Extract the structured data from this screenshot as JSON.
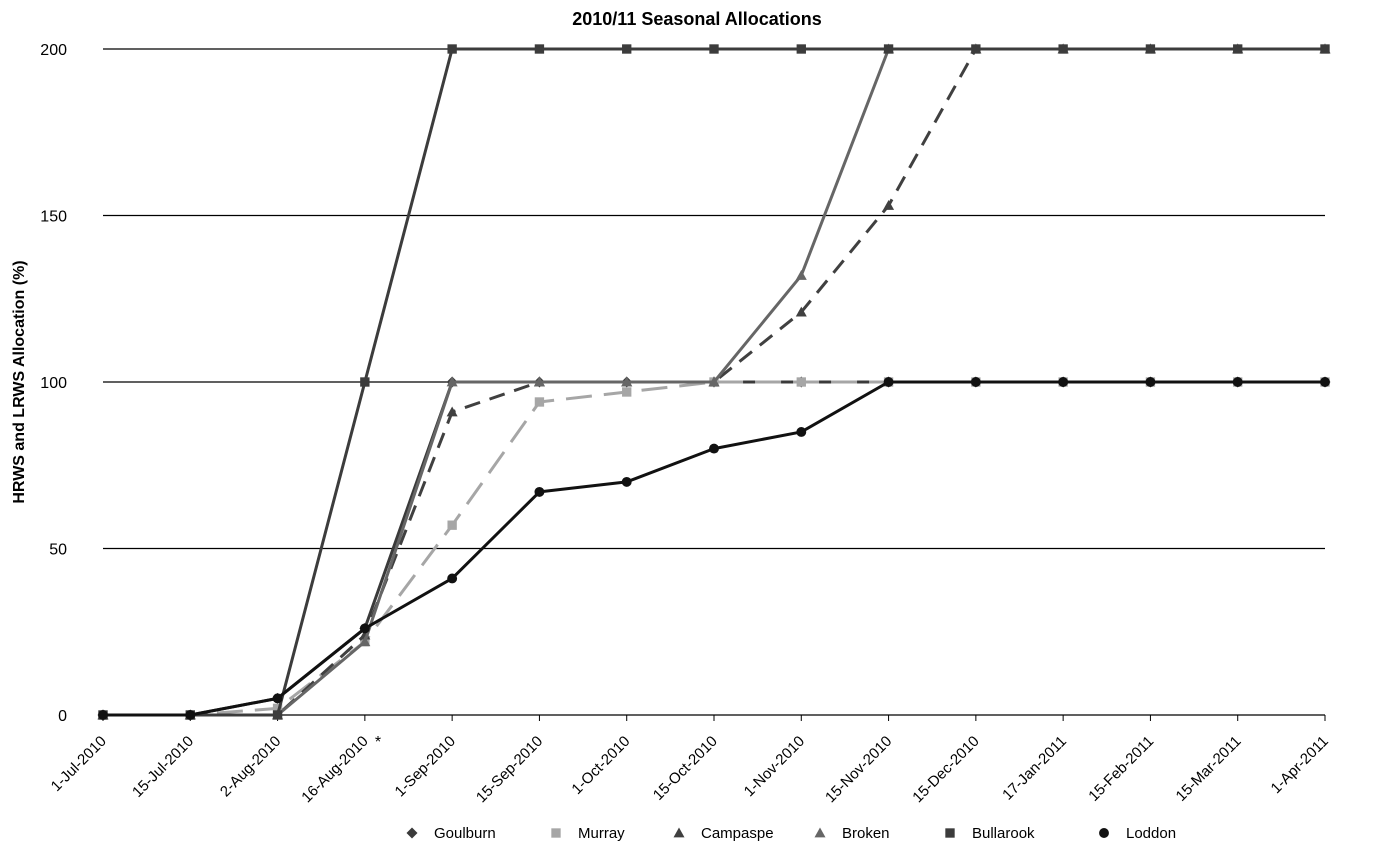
{
  "chart_data": {
    "type": "line",
    "title": "2010/11 Seasonal Allocations",
    "xlabel": "",
    "ylabel": "HRWS and LRWS Allocation (%)",
    "ylim": [
      0,
      200
    ],
    "yticks": [
      0,
      50,
      100,
      150,
      200
    ],
    "grid": "horizontal",
    "legend_position": "bottom",
    "categories": [
      "1-Jul-2010",
      "15-Jul-2010",
      "2-Aug-2010",
      "16-Aug-2010",
      "1-Sep-2010",
      "15-Sep-2010",
      "1-Oct-2010",
      "15-Oct-2010",
      "1-Nov-2010",
      "15-Nov-2010",
      "15-Dec-2010",
      "17-Jan-2011",
      "15-Feb-2011",
      "15-Mar-2011",
      "1-Apr-2011"
    ],
    "annotations": [
      {
        "category": "16-Aug-2010",
        "text": "*"
      }
    ],
    "series": [
      {
        "name": "Goulburn",
        "marker": "diamond",
        "color": "#3a3a3a",
        "dash": "solid",
        "values": [
          0,
          0,
          5,
          26,
          100,
          100,
          100,
          100,
          100,
          100,
          100,
          100,
          100,
          100,
          100
        ]
      },
      {
        "name": "Murray",
        "marker": "square",
        "color": "#a6a6a6",
        "dash": "long-dash",
        "values": [
          0,
          0,
          2,
          22,
          57,
          94,
          97,
          100,
          100,
          100,
          100,
          100,
          100,
          100,
          100
        ]
      },
      {
        "name": "Campaspe",
        "marker": "triangle",
        "color": "#404040",
        "dash": "dash",
        "values": [
          0,
          0,
          0,
          24,
          91,
          100,
          100,
          100,
          121,
          153,
          200,
          200,
          200,
          200,
          200
        ]
      },
      {
        "name": "Broken",
        "marker": "triangle",
        "color": "#666666",
        "dash": "solid",
        "values": [
          0,
          0,
          0,
          22,
          100,
          100,
          100,
          100,
          132,
          200,
          200,
          200,
          200,
          200,
          200
        ]
      },
      {
        "name": "Bullarook",
        "marker": "square",
        "color": "#3c3c3c",
        "dash": "solid",
        "values": [
          0,
          0,
          0,
          100,
          200,
          200,
          200,
          200,
          200,
          200,
          200,
          200,
          200,
          200,
          200
        ]
      },
      {
        "name": "Loddon",
        "marker": "circle",
        "color": "#111111",
        "dash": "solid",
        "values": [
          0,
          0,
          5,
          26,
          41,
          67,
          70,
          80,
          85,
          100,
          100,
          100,
          100,
          100,
          100
        ]
      }
    ]
  }
}
